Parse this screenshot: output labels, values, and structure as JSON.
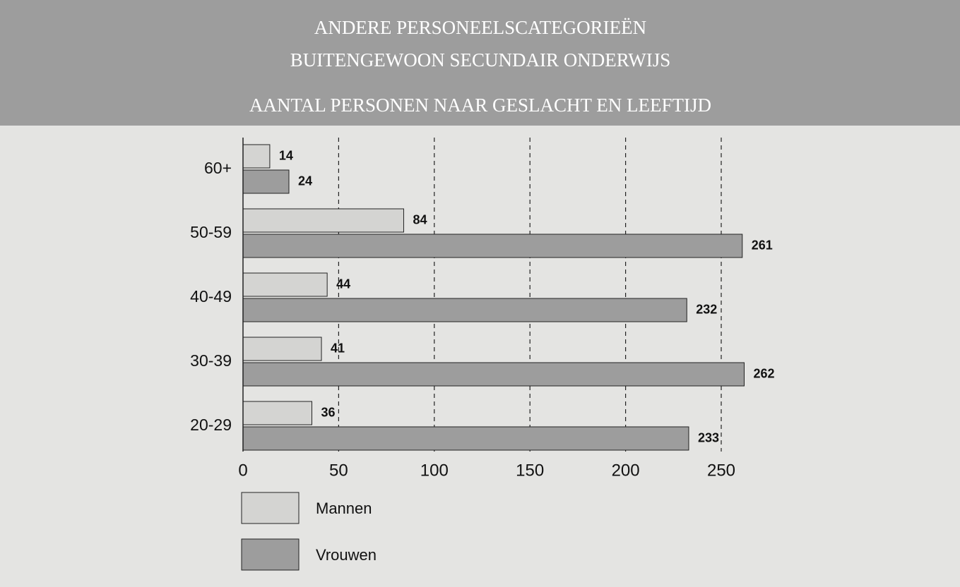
{
  "chart_data": {
    "type": "hbar",
    "title": [
      "ANDERE PERSONEELSCATEGORIEËN",
      "BUITENGEWOON SECUNDAIR ONDERWIJS"
    ],
    "subtitle": "AANTAL PERSONEN NAAR GESLACHT EN LEEFTIJD",
    "categories": [
      "60+",
      "50-59",
      "40-49",
      "30-39",
      "20-29"
    ],
    "series": [
      {
        "name": "Mannen",
        "color": "#d4d4d2",
        "values": [
          14,
          84,
          44,
          41,
          36
        ]
      },
      {
        "name": "Vrouwen",
        "color": "#9d9d9d",
        "values": [
          24,
          261,
          232,
          262,
          233
        ]
      }
    ],
    "xlim": [
      0,
      250
    ],
    "xticks": [
      0,
      50,
      100,
      150,
      200,
      250
    ],
    "grid": true
  }
}
